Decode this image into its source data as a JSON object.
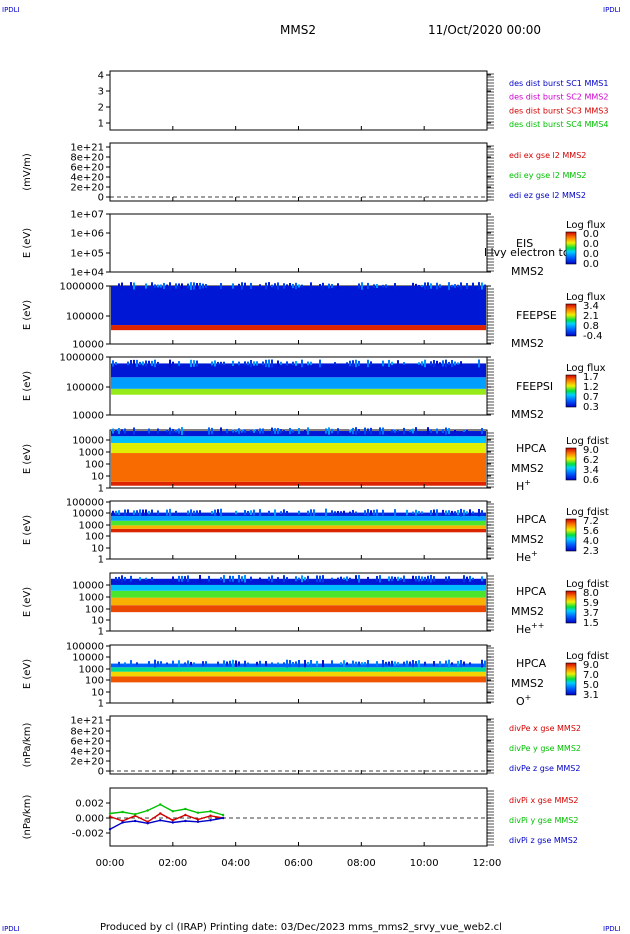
{
  "corners": {
    "top_left": "IPDLI",
    "top_right": "IPDLI",
    "bottom_left": "IPDLI",
    "bottom_right": "IPDLI"
  },
  "header": {
    "spacecraft": "MMS2",
    "date": "11/Oct/2020 00:00"
  },
  "footer": {
    "text": "Produced by cl (IRAP)   Printing date: 03/Dec/2023   mms_mms2_srvy_vue_web2.cl"
  },
  "colors": {
    "red": "#d40000",
    "magenta": "#d000d0",
    "green": "#00c000",
    "blue": "#0000c8",
    "axis": "#000000"
  },
  "panels": [
    {
      "id": "burst",
      "ylabel": "",
      "ticks": [
        "4",
        "3",
        "2",
        "1"
      ],
      "legend": [
        {
          "text": "des dist burst SC1 MMS1",
          "color": "#0000c8"
        },
        {
          "text": "des dist burst SC2 MMS2",
          "color": "#d000d0"
        },
        {
          "text": "des dist burst SC3 MMS3",
          "color": "#d40000"
        },
        {
          "text": "des dist burst SC4 MMS4",
          "color": "#00c000"
        }
      ]
    },
    {
      "id": "edi",
      "ylabel": "(mV/m)",
      "ticks": [
        "1e+21",
        "8e+20",
        "6e+20",
        "4e+20",
        "2e+20",
        "0"
      ],
      "legend": [
        {
          "text": "edi ex gse l2 MMS2",
          "color": "#d40000"
        },
        {
          "text": "edi ey gse l2 MMS2",
          "color": "#00c000"
        },
        {
          "text": "edi ez gse l2 MMS2",
          "color": "#0000c8"
        }
      ]
    },
    {
      "id": "eis",
      "ylabel": "E (eV)",
      "ticks": [
        "1e+07",
        "1e+06",
        "1e+05",
        "1e+04"
      ],
      "instrument": "EIS",
      "overlay": "l lvy electron to",
      "sc": "MMS2",
      "species": "",
      "cbar": {
        "title": "Log flux",
        "ticks": [
          "0.0",
          "0.0",
          "0.0",
          "0.0"
        ]
      }
    },
    {
      "id": "feepse",
      "ylabel": "E (eV)",
      "ticks": [
        "1000000",
        "100000",
        "10000"
      ],
      "instrument": "FEEPSE",
      "sc": "MMS2",
      "species": "",
      "cbar": {
        "title": "Log flux",
        "ticks": [
          "3.4",
          "2.1",
          "0.8",
          "-0.4"
        ]
      }
    },
    {
      "id": "feepsi",
      "ylabel": "E (eV)",
      "ticks": [
        "1000000",
        "100000",
        "10000"
      ],
      "instrument": "FEEPSI",
      "sc": "MMS2",
      "species": "",
      "cbar": {
        "title": "Log flux",
        "ticks": [
          "1.7",
          "1.2",
          "0.7",
          "0.3"
        ]
      }
    },
    {
      "id": "hpca-h",
      "ylabel": "E (eV)",
      "ticks": [
        "10000",
        "1000",
        "100",
        "10",
        "1"
      ],
      "instrument": "HPCA",
      "sc": "MMS2",
      "species": "H+",
      "cbar": {
        "title": "Log fdist",
        "ticks": [
          "9.0",
          "6.2",
          "3.4",
          "0.6"
        ]
      }
    },
    {
      "id": "hpca-he",
      "ylabel": "E (eV)",
      "ticks": [
        "100000",
        "10000",
        "1000",
        "100",
        "10",
        "1"
      ],
      "instrument": "HPCA",
      "sc": "MMS2",
      "species": "He+",
      "cbar": {
        "title": "Log fdist",
        "ticks": [
          "7.2",
          "5.6",
          "4.0",
          "2.3"
        ]
      }
    },
    {
      "id": "hpca-hepp",
      "ylabel": "E (eV)",
      "ticks": [
        "10000",
        "1000",
        "100",
        "10",
        "1"
      ],
      "instrument": "HPCA",
      "sc": "MMS2",
      "species": "He++",
      "cbar": {
        "title": "Log fdist",
        "ticks": [
          "8.0",
          "5.9",
          "3.7",
          "1.5"
        ]
      }
    },
    {
      "id": "hpca-o",
      "ylabel": "E (eV)",
      "ticks": [
        "100000",
        "10000",
        "1000",
        "100",
        "10",
        "1"
      ],
      "instrument": "HPCA",
      "sc": "MMS2",
      "species": "O+",
      "cbar": {
        "title": "Log fdist",
        "ticks": [
          "9.0",
          "7.0",
          "5.0",
          "3.1"
        ]
      }
    },
    {
      "id": "divpe",
      "ylabel": "(nPa/km)",
      "ticks": [
        "1e+21",
        "8e+20",
        "6e+20",
        "4e+20",
        "2e+20",
        "0"
      ],
      "legend": [
        {
          "text": "divPe x gse MMS2",
          "color": "#d40000"
        },
        {
          "text": "divPe y gse MMS2",
          "color": "#00c000"
        },
        {
          "text": "divPe z gse MMS2",
          "color": "#0000c8"
        }
      ]
    },
    {
      "id": "divpi",
      "ylabel": "(nPa/km)",
      "ticks": [
        "0.002",
        "0.000",
        "-0.002"
      ],
      "legend": [
        {
          "text": "divPi x gse MMS2",
          "color": "#d40000"
        },
        {
          "text": "divPi y gse MMS2",
          "color": "#00c000"
        },
        {
          "text": "divPi z gse MMS2",
          "color": "#0000c8"
        }
      ]
    }
  ],
  "chart_data": {
    "type": "line",
    "x_ticks": [
      "00:00",
      "02:00",
      "04:00",
      "06:00",
      "08:00",
      "10:00",
      "12:00"
    ],
    "xlim_hours": [
      0,
      12
    ],
    "spectrograms": [
      {
        "panel": "feepse",
        "ylim_eV": [
          10000,
          1000000
        ],
        "log": true,
        "bands": [
          {
            "from": 30000,
            "to": 45000,
            "level": 0.95
          },
          {
            "from": 45000,
            "to": 1000000,
            "level": 0.05
          }
        ]
      },
      {
        "panel": "feepsi",
        "ylim_eV": [
          10000,
          1000000
        ],
        "log": true,
        "bands": [
          {
            "from": 50000,
            "to": 80000,
            "level": 0.6
          },
          {
            "from": 80000,
            "to": 200000,
            "level": 0.3
          },
          {
            "from": 200000,
            "to": 600000,
            "level": 0.05
          }
        ]
      },
      {
        "panel": "hpca-h",
        "ylim_eV": [
          1,
          30000
        ],
        "log": true,
        "bands": [
          {
            "from": 1.5,
            "to": 3,
            "level": 0.95
          },
          {
            "from": 3,
            "to": 500,
            "level": 0.85
          },
          {
            "from": 500,
            "to": 3000,
            "level": 0.65
          },
          {
            "from": 3000,
            "to": 10000,
            "level": 0.35
          },
          {
            "from": 10000,
            "to": 25000,
            "level": 0.05
          }
        ]
      },
      {
        "panel": "hpca-he",
        "ylim_eV": [
          1,
          100000
        ],
        "log": true,
        "bands": [
          {
            "from": 200,
            "to": 400,
            "level": 0.95
          },
          {
            "from": 400,
            "to": 800,
            "level": 0.75
          },
          {
            "from": 800,
            "to": 2000,
            "level": 0.55
          },
          {
            "from": 2000,
            "to": 5000,
            "level": 0.3
          },
          {
            "from": 5000,
            "to": 10000,
            "level": 0.08
          }
        ]
      },
      {
        "panel": "hpca-hepp",
        "ylim_eV": [
          1,
          10000
        ],
        "log": true,
        "bands": [
          {
            "from": 20,
            "to": 60,
            "level": 0.9
          },
          {
            "from": 60,
            "to": 200,
            "level": 0.75
          },
          {
            "from": 200,
            "to": 600,
            "level": 0.55
          },
          {
            "from": 600,
            "to": 1500,
            "level": 0.35
          },
          {
            "from": 1500,
            "to": 4000,
            "level": 0.05
          }
        ]
      },
      {
        "panel": "hpca-o",
        "ylim_eV": [
          1,
          100000
        ],
        "log": true,
        "bands": [
          {
            "from": 60,
            "to": 200,
            "level": 0.88
          },
          {
            "from": 200,
            "to": 500,
            "level": 0.7
          },
          {
            "from": 500,
            "to": 1200,
            "level": 0.45
          },
          {
            "from": 1200,
            "to": 2500,
            "level": 0.2
          }
        ]
      }
    ],
    "series": [
      {
        "name": "divPi x gse MMS2",
        "panel": "divpi",
        "color": "#d40000",
        "t_hours": [
          0,
          0.4,
          0.8,
          1.2,
          1.6,
          2.0,
          2.4,
          2.8,
          3.2,
          3.6
        ],
        "values": [
          0.0002,
          -0.0004,
          0.0003,
          -0.0005,
          0.0006,
          -0.0003,
          0.0004,
          -0.0002,
          0.0003,
          0.0
        ]
      },
      {
        "name": "divPi y gse MMS2",
        "panel": "divpi",
        "color": "#00c000",
        "t_hours": [
          0,
          0.4,
          0.8,
          1.2,
          1.6,
          2.0,
          2.4,
          2.8,
          3.2,
          3.6
        ],
        "values": [
          0.0006,
          0.0008,
          0.0005,
          0.001,
          0.0018,
          0.0009,
          0.0012,
          0.0007,
          0.0009,
          0.0004
        ]
      },
      {
        "name": "divPi z gse MMS2",
        "panel": "divpi",
        "color": "#0000c8",
        "t_hours": [
          0,
          0.4,
          0.8,
          1.2,
          1.6,
          2.0,
          2.4,
          2.8,
          3.2,
          3.6
        ],
        "values": [
          -0.0015,
          -0.0006,
          -0.0004,
          -0.0007,
          -0.0003,
          -0.0006,
          -0.0004,
          -0.0005,
          -0.0003,
          0.0
        ]
      }
    ]
  }
}
